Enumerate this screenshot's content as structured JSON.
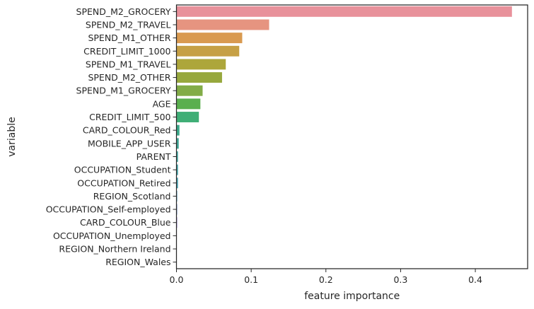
{
  "chart_data": {
    "type": "bar",
    "orientation": "horizontal",
    "xlabel": "feature importance",
    "ylabel": "variable",
    "xlim": [
      0,
      0.47
    ],
    "xticks": [
      0.0,
      0.1,
      0.2,
      0.3,
      0.4
    ],
    "xtick_labels": [
      "0.0",
      "0.1",
      "0.2",
      "0.3",
      "0.4"
    ],
    "grid": false,
    "categories": [
      "SPEND_M2_GROCERY",
      "SPEND_M2_TRAVEL",
      "SPEND_M1_OTHER",
      "CREDIT_LIMIT_1000",
      "SPEND_M1_TRAVEL",
      "SPEND_M2_OTHER",
      "SPEND_M1_GROCERY",
      "AGE",
      "CREDIT_LIMIT_500",
      "CARD_COLOUR_Red",
      "MOBILE_APP_USER",
      "PARENT",
      "OCCUPATION_Student",
      "OCCUPATION_Retired",
      "REGION_Scotland",
      "OCCUPATION_Self-employed",
      "CARD_COLOUR_Blue",
      "OCCUPATION_Unemployed",
      "REGION_Northern Ireland",
      "REGION_Wales"
    ],
    "values": [
      0.449,
      0.124,
      0.088,
      0.084,
      0.066,
      0.061,
      0.035,
      0.032,
      0.03,
      0.004,
      0.003,
      0.002,
      0.002,
      0.002,
      0.001,
      0.001,
      0.001,
      0.0005,
      0.0004,
      0.0002
    ],
    "colors": [
      "#e8919b",
      "#e69480",
      "#d99a50",
      "#c6a045",
      "#ada63b",
      "#97a83d",
      "#82ac47",
      "#5aaf4e",
      "#3fae76",
      "#3ba98a",
      "#3da594",
      "#3da39c",
      "#3ea1a6",
      "#40a0b0",
      "#4a9fc3",
      "#7a9bd8",
      "#a38fe6",
      "#c385e5",
      "#de7fd6",
      "#e887bd"
    ]
  }
}
